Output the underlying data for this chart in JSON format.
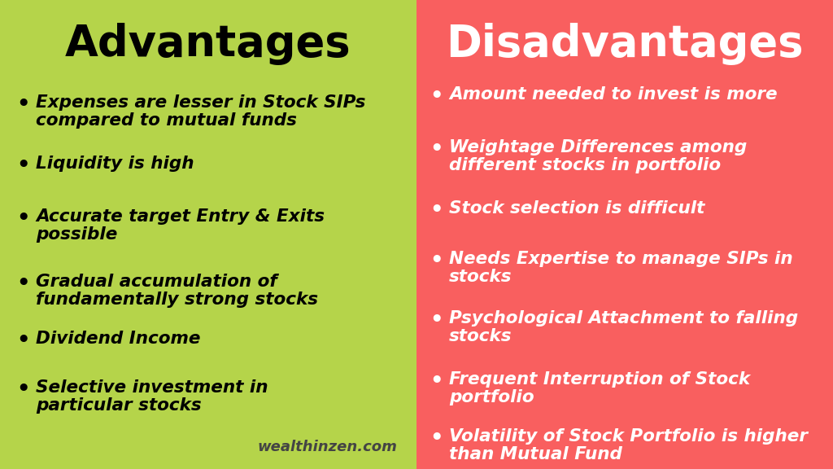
{
  "left_bg_color": "#b5d44a",
  "right_bg_color": "#f95f5f",
  "outer_bg_color": "#ffffff",
  "left_title": "Advantages",
  "right_title": "Disadvantages",
  "left_title_color": "#000000",
  "right_title_color": "#ffffff",
  "left_text_color": "#000000",
  "right_text_color": "#ffffff",
  "watermark": "wealthinzen.com",
  "watermark_color": "#444444",
  "advantages": [
    "Expenses are lesser in Stock SIPs\ncompared to mutual funds",
    "Liquidity is high",
    "Accurate target Entry & Exits\npossible",
    "Gradual accumulation of\nfundamentally strong stocks",
    "Dividend Income",
    "Selective investment in\nparticular stocks"
  ],
  "disadvantages": [
    "Amount needed to invest is more",
    "Weightage Differences among\ndifferent stocks in portfolio",
    "Stock selection is difficult",
    "Needs Expertise to manage SIPs in\nstocks",
    "Psychological Attachment to falling\nstocks",
    "Frequent Interruption of Stock\nportfolio",
    "Volatility of Stock Portfolio is higher\nthan Mutual Fund"
  ],
  "title_fontsize": 38,
  "body_fontsize": 15.5,
  "watermark_fontsize": 13,
  "fig_width": 10.24,
  "fig_height": 5.76,
  "dpi": 100
}
